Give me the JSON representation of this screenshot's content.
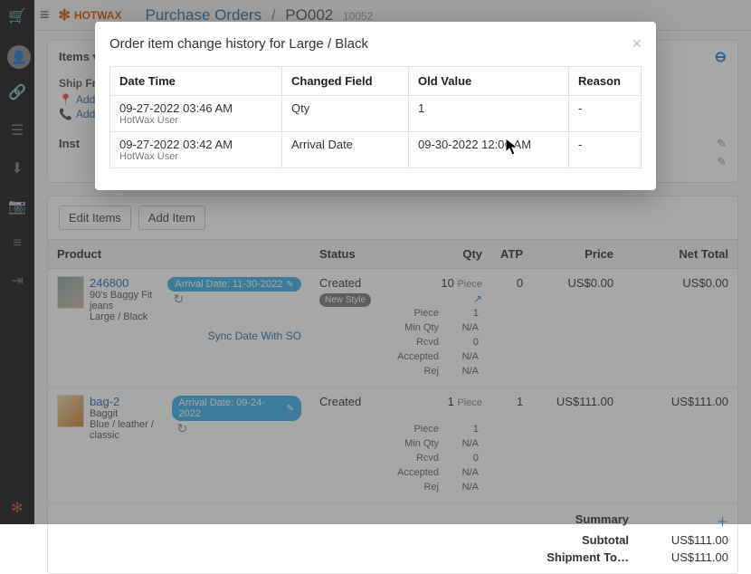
{
  "brand": "HOTWAX",
  "breadcrumb": {
    "parent": "Purchase Orders",
    "current": "PO002",
    "sub": "10052"
  },
  "sections": {
    "items_label": "Items",
    "shipfrom_label": "Ship From",
    "add_label": "Add",
    "inst_label": "Inst",
    "edit_items": "Edit Items",
    "add_item": "Add Item"
  },
  "table": {
    "headers": {
      "product": "Product",
      "status": "Status",
      "qty": "Qty",
      "atp": "ATP",
      "price": "Price",
      "net": "Net Total"
    },
    "rows": [
      {
        "sku": "246800",
        "desc": "90's Baggy Fit jeans",
        "variant": "Large / Black",
        "arrival": "Arrival Date: 11-30-2022",
        "status": "Created",
        "tag": "New Style",
        "qty": "10",
        "unit": "Piece",
        "atp": "0",
        "price": "US$0.00",
        "net": "US$0.00",
        "sync": "Sync Date With SO",
        "details": [
          [
            "Piece",
            "1"
          ],
          [
            "Min Qty",
            "N/A"
          ],
          [
            "Rcvd",
            "0"
          ],
          [
            "Accepted",
            "N/A"
          ],
          [
            "Rej",
            "N/A"
          ]
        ]
      },
      {
        "sku": "bag-2",
        "desc": "Baggit",
        "variant": "Blue / leather / classic",
        "arrival": "Arrival Date: 09-24-2022",
        "status": "Created",
        "tag": "",
        "qty": "1",
        "unit": "Piece",
        "atp": "1",
        "price": "US$111.00",
        "net": "US$111.00",
        "details": [
          [
            "Piece",
            "1"
          ],
          [
            "Min Qty",
            "N/A"
          ],
          [
            "Rcvd",
            "0"
          ],
          [
            "Accepted",
            "N/A"
          ],
          [
            "Rej",
            "N/A"
          ]
        ]
      }
    ]
  },
  "summary": {
    "title": "Summary",
    "subtotal_l": "Subtotal",
    "subtotal_v": "US$111.00",
    "ship_l": "Shipment To…",
    "ship_v": "US$111.00"
  },
  "modal": {
    "title": "Order item change history for Large / Black",
    "headers": {
      "dt": "Date Time",
      "cf": "Changed Field",
      "ov": "Old Value",
      "r": "Reason"
    },
    "rows": [
      {
        "dt": "09-27-2022 03:46 AM",
        "user": "HotWax User",
        "cf": "Qty",
        "ov": "1",
        "r": "-"
      },
      {
        "dt": "09-27-2022 03:42 AM",
        "user": "HotWax User",
        "cf": "Arrival Date",
        "ov": "09-30-2022 12:00 AM",
        "r": "-"
      }
    ]
  }
}
